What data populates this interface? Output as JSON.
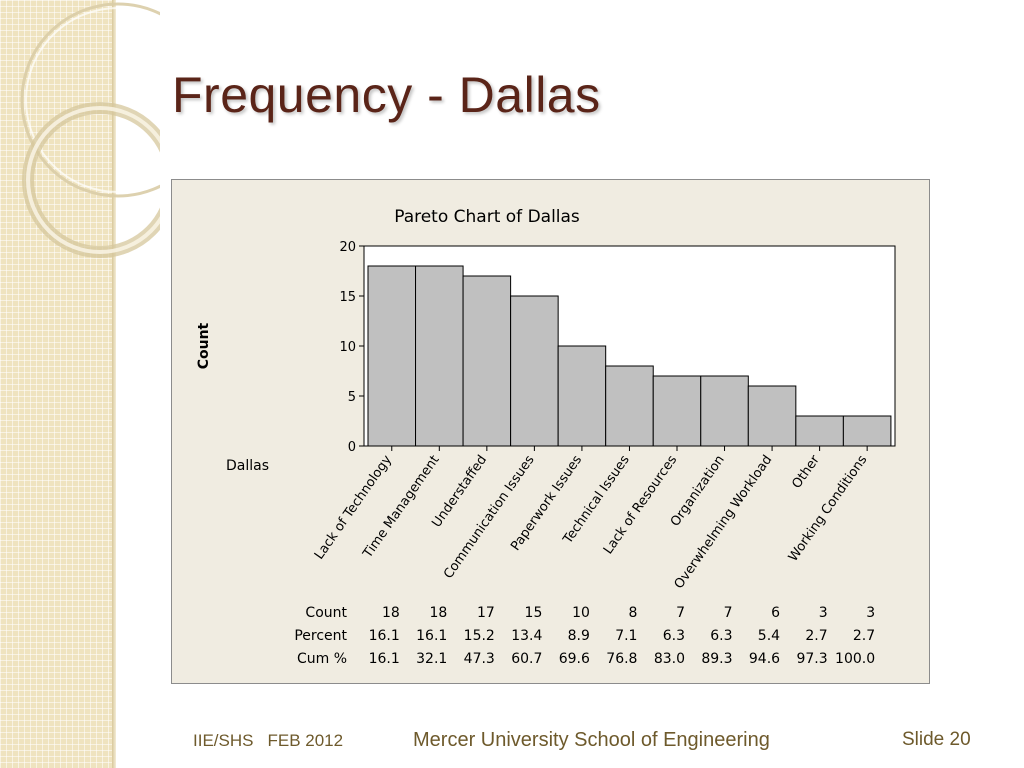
{
  "slide": {
    "title": "Frequency - Dallas",
    "footer_left_org": "IIE/SHS",
    "footer_left_date": "FEB 2012",
    "footer_center": "Mercer University School of Engineering",
    "footer_right": "Slide 20"
  },
  "chart_data": {
    "type": "bar",
    "title": "Pareto Chart of Dallas",
    "ylabel": "Count",
    "xlabel": "Dallas",
    "ylim": [
      0,
      20
    ],
    "yticks": [
      0,
      5,
      10,
      15,
      20
    ],
    "grid": false,
    "categories": [
      "Lack of Technology",
      "Time Management",
      "Understaffed",
      "Communication Issues",
      "Paperwork Issues",
      "Technical Issues",
      "Lack of Resources",
      "Organization",
      "Overwhelming Workload",
      "Other",
      "Working Conditions"
    ],
    "values": [
      18,
      18,
      17,
      15,
      10,
      8,
      7,
      7,
      6,
      3,
      3
    ],
    "table": {
      "row_labels": [
        "Count",
        "Percent",
        "Cum %"
      ],
      "count": [
        "18",
        "18",
        "17",
        "15",
        "10",
        "8",
        "7",
        "7",
        "6",
        "3",
        "3"
      ],
      "percent": [
        "16.1",
        "16.1",
        "15.2",
        "13.4",
        "8.9",
        "7.1",
        "6.3",
        "6.3",
        "5.4",
        "2.7",
        "2.7"
      ],
      "cum_percent": [
        "16.1",
        "32.1",
        "47.3",
        "60.7",
        "69.6",
        "76.8",
        "83.0",
        "89.3",
        "94.6",
        "97.3",
        "100.0"
      ]
    },
    "colors": {
      "bar_fill": "#c0c0c0",
      "bar_stroke": "#000000",
      "background": "#f0ece1",
      "plot_area": "#ffffff"
    }
  }
}
